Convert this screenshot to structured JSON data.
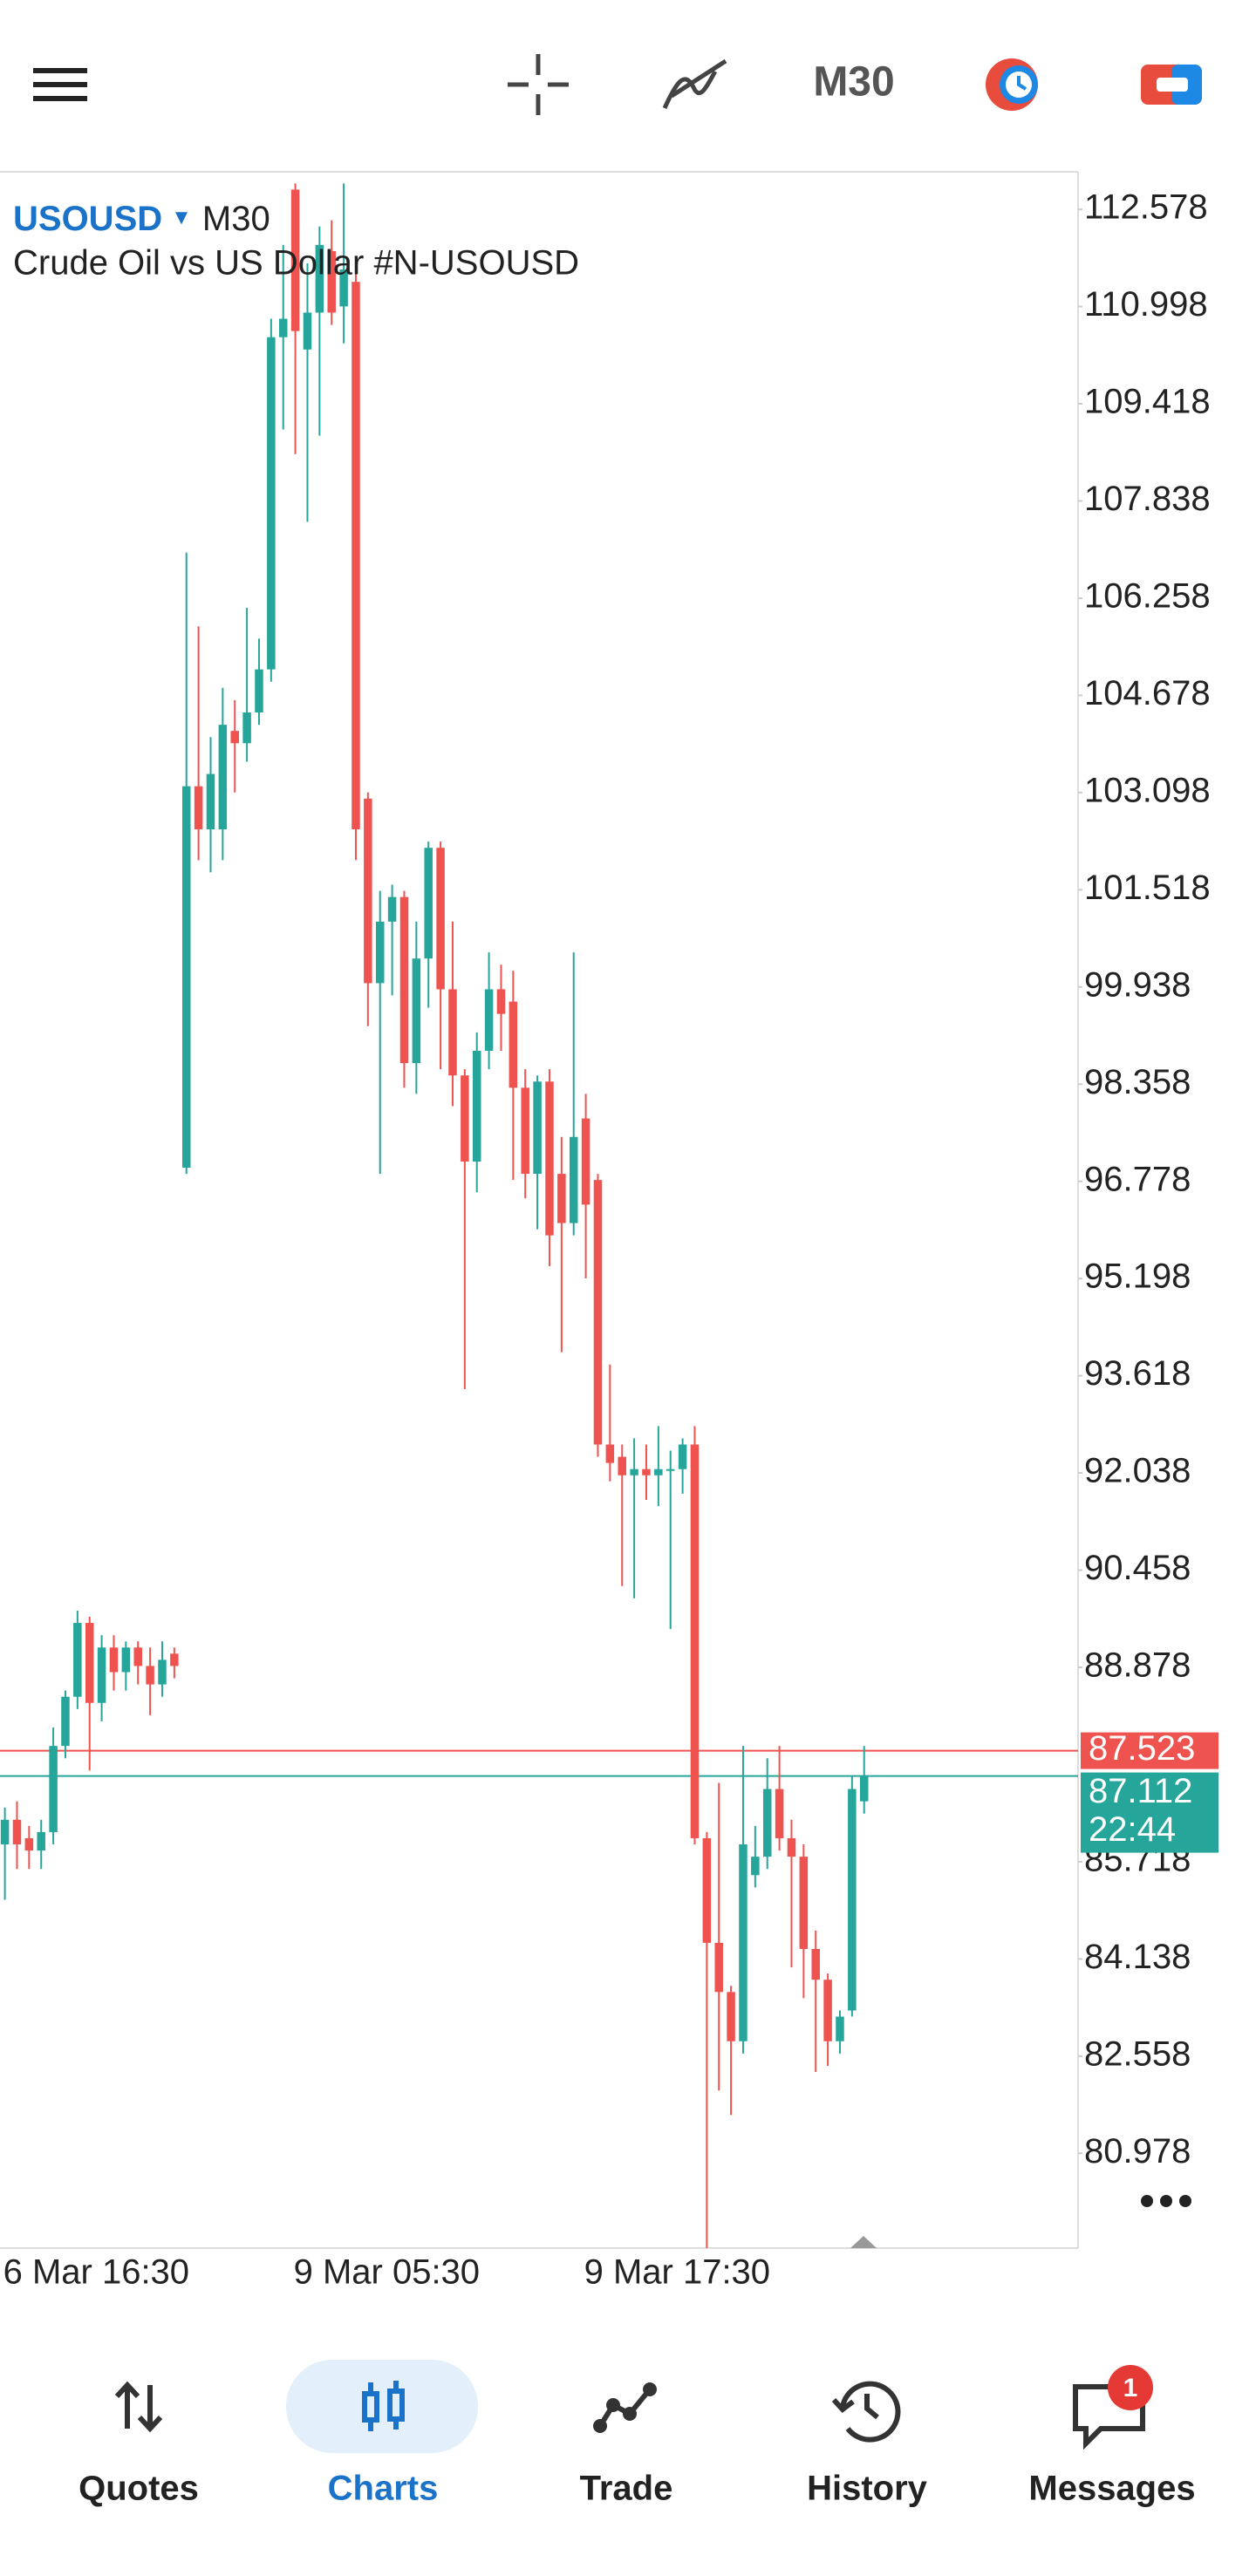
{
  "toolbar": {
    "timeframe": "M30"
  },
  "chart_data": {
    "type": "candlestick",
    "title": "USOUSD",
    "timeframe": "M30",
    "subtitle": "Crude Oil vs US Dollar #N-USOUSD",
    "up_color": "#26a69a",
    "down_color": "#ef5350",
    "categories": [
      "6 Mar 16:30",
      null,
      null,
      null,
      null,
      null,
      null,
      null,
      null,
      null,
      null,
      null,
      null,
      null,
      null,
      null,
      null,
      null,
      null,
      null,
      null,
      null,
      null,
      null,
      "9 Mar 05:30",
      null,
      null,
      null,
      null,
      null,
      null,
      null,
      null,
      null,
      null,
      null,
      null,
      null,
      null,
      null,
      null,
      null,
      null,
      null,
      null,
      null,
      null,
      null,
      "9 Mar 17:30",
      null,
      null,
      null,
      null,
      null,
      null,
      null,
      null,
      null,
      null,
      null,
      null,
      null,
      null,
      null,
      null,
      null,
      null,
      null,
      null,
      null,
      null,
      null
    ],
    "open": [
      86.0,
      86.4,
      86.1,
      85.9,
      86.2,
      87.6,
      88.4,
      89.6,
      88.3,
      89.2,
      88.8,
      89.2,
      88.9,
      88.6,
      89.1,
      97.0,
      103.2,
      102.5,
      102.5,
      104.1,
      103.9,
      104.4,
      105.1,
      110.5,
      112.9,
      110.3,
      110.9,
      111.9,
      111.0,
      111.4,
      103.0,
      100.0,
      101.0,
      101.4,
      98.7,
      100.4,
      102.2,
      99.9,
      98.5,
      97.1,
      98.9,
      99.9,
      99.7,
      98.3,
      96.9,
      98.4,
      96.9,
      96.1,
      97.8,
      96.8,
      92.5,
      92.3,
      92.0,
      92.1,
      92.0,
      92.1,
      92.1,
      92.5,
      86.1,
      84.4,
      83.6,
      82.8,
      85.5,
      85.8,
      86.9,
      86.1,
      85.8,
      84.3,
      83.8,
      82.8,
      83.3,
      86.7
    ],
    "high": [
      86.6,
      86.7,
      86.3,
      86.4,
      87.9,
      88.5,
      89.8,
      89.7,
      89.4,
      89.4,
      89.3,
      89.3,
      89.2,
      89.3,
      89.2,
      107.0,
      105.8,
      104.0,
      104.8,
      104.6,
      106.1,
      105.6,
      110.8,
      112.0,
      113.0,
      111.7,
      112.3,
      112.4,
      113.0,
      111.6,
      103.1,
      101.5,
      101.6,
      101.5,
      101.0,
      102.3,
      102.3,
      101.0,
      98.6,
      99.2,
      100.5,
      100.3,
      100.2,
      98.6,
      98.5,
      98.6,
      97.5,
      100.5,
      98.2,
      96.9,
      93.8,
      92.5,
      92.6,
      92.5,
      92.8,
      92.4,
      92.6,
      92.8,
      86.2,
      87.0,
      83.7,
      87.6,
      86.3,
      87.4,
      87.6,
      86.4,
      86.0,
      84.6,
      83.9,
      83.3,
      87.1,
      87.6
    ],
    "low": [
      85.1,
      85.6,
      85.6,
      85.6,
      86.0,
      87.4,
      88.2,
      87.2,
      88.0,
      88.5,
      88.5,
      88.6,
      88.1,
      88.4,
      88.7,
      96.9,
      102.0,
      101.8,
      102.0,
      103.1,
      103.6,
      104.2,
      104.9,
      109.0,
      108.6,
      107.5,
      108.9,
      110.7,
      110.4,
      102.0,
      99.3,
      96.9,
      99.8,
      98.3,
      98.2,
      99.6,
      98.6,
      98.0,
      93.4,
      96.6,
      98.6,
      98.9,
      96.8,
      96.5,
      96.0,
      95.4,
      94.0,
      95.9,
      95.2,
      92.3,
      91.9,
      90.2,
      90.0,
      91.6,
      91.5,
      89.5,
      91.7,
      86.0,
      79.4,
      82.0,
      81.6,
      82.6,
      85.3,
      85.6,
      85.9,
      84.0,
      83.5,
      82.3,
      82.4,
      82.6,
      83.2,
      86.5
    ],
    "close": [
      86.4,
      86.0,
      85.9,
      86.2,
      87.6,
      88.4,
      89.6,
      88.3,
      89.2,
      88.8,
      89.2,
      88.9,
      88.6,
      89.0,
      88.9,
      103.2,
      102.5,
      103.4,
      104.2,
      103.9,
      104.4,
      105.1,
      110.5,
      110.8,
      110.6,
      110.9,
      112.0,
      110.9,
      111.6,
      102.5,
      100.0,
      101.0,
      101.4,
      98.7,
      100.4,
      102.2,
      99.9,
      98.5,
      97.1,
      98.9,
      99.9,
      99.5,
      98.3,
      96.9,
      98.4,
      95.9,
      96.1,
      97.5,
      96.4,
      92.5,
      92.2,
      92.0,
      92.1,
      92.0,
      92.1,
      92.1,
      92.5,
      86.1,
      84.4,
      83.6,
      82.8,
      86.0,
      85.8,
      86.9,
      86.1,
      85.8,
      84.3,
      83.8,
      82.8,
      83.2,
      86.9,
      87.112
    ],
    "ylim": [
      79.437,
      113.189
    ],
    "yticks": [
      112.578,
      110.998,
      109.418,
      107.838,
      106.258,
      104.678,
      103.098,
      101.518,
      99.938,
      98.358,
      96.778,
      95.198,
      93.618,
      92.038,
      90.458,
      88.878,
      85.718,
      84.138,
      82.558,
      80.978
    ],
    "price_lines": [
      {
        "value": 87.523,
        "color": "#ef5350"
      },
      {
        "value": 87.112,
        "color": "#26a69a",
        "countdown": "22:44"
      }
    ]
  },
  "nav": {
    "items": [
      {
        "label": "Quotes"
      },
      {
        "label": "Charts"
      },
      {
        "label": "Trade"
      },
      {
        "label": "History"
      },
      {
        "label": "Messages"
      }
    ],
    "active": 1,
    "badge": "1"
  }
}
